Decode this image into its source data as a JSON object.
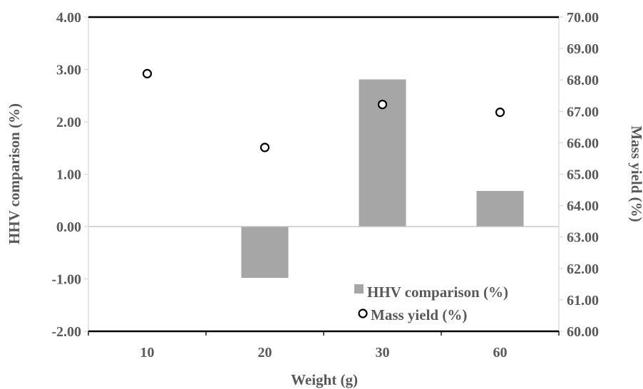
{
  "chart_data": {
    "type": "bar",
    "xlabel": "Weight (g)",
    "categories": [
      "10",
      "20",
      "30",
      "60"
    ],
    "y_left": {
      "label": "HHV comparison (%)",
      "lim": [
        -2,
        4
      ],
      "ticks": [
        "-2.00",
        "-1.00",
        "0.00",
        "1.00",
        "2.00",
        "3.00",
        "4.00"
      ]
    },
    "y_right": {
      "label": "Mass yield (%)",
      "lim": [
        60,
        70
      ],
      "ticks": [
        "60.00",
        "61.00",
        "62.00",
        "63.00",
        "64.00",
        "65.00",
        "66.00",
        "67.00",
        "68.00",
        "69.00",
        "70.00"
      ]
    },
    "series": [
      {
        "name": "HHV comparison (%)",
        "kind": "bar",
        "axis": "left",
        "color": "#a6a6a6",
        "values": [
          0,
          -0.98,
          2.81,
          0.68
        ]
      },
      {
        "name": "Mass yield (%)",
        "kind": "scatter",
        "axis": "right",
        "marker": "open-circle",
        "color": "#000000",
        "values": [
          68.2,
          65.85,
          67.22,
          66.97
        ]
      }
    ],
    "legend": {
      "position": "bottom-right"
    },
    "grid": false
  }
}
